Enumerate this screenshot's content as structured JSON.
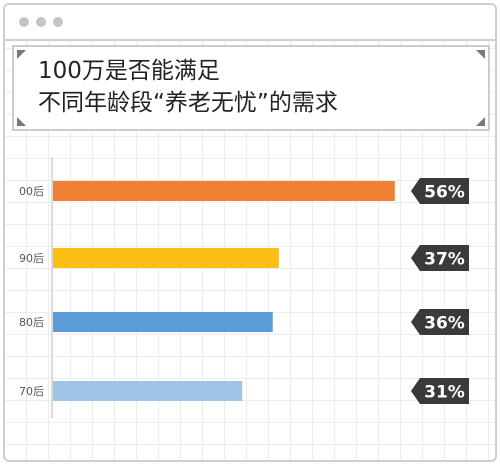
{
  "title": {
    "line1": "100万是否能满足",
    "line2": "不同年龄段“养老无忧”的需求"
  },
  "chart_data": {
    "type": "bar",
    "orientation": "horizontal",
    "categories": [
      "00后",
      "90后",
      "80后",
      "70后"
    ],
    "values": [
      56,
      37,
      36,
      31
    ],
    "value_labels": [
      "56%",
      "37%",
      "36%",
      "31%"
    ],
    "colors": [
      "#ee7f33",
      "#fbbe14",
      "#5b9bd6",
      "#9ec4e6"
    ],
    "xlim": [
      0,
      58
    ],
    "title": "100万是否能满足不同年龄段“养老无忧”的需求"
  },
  "colors": {
    "label_badge": "#3a3a3a",
    "label_text": "#ffffff",
    "axis_line": "#cfcfcf",
    "category_text": "#555555"
  }
}
